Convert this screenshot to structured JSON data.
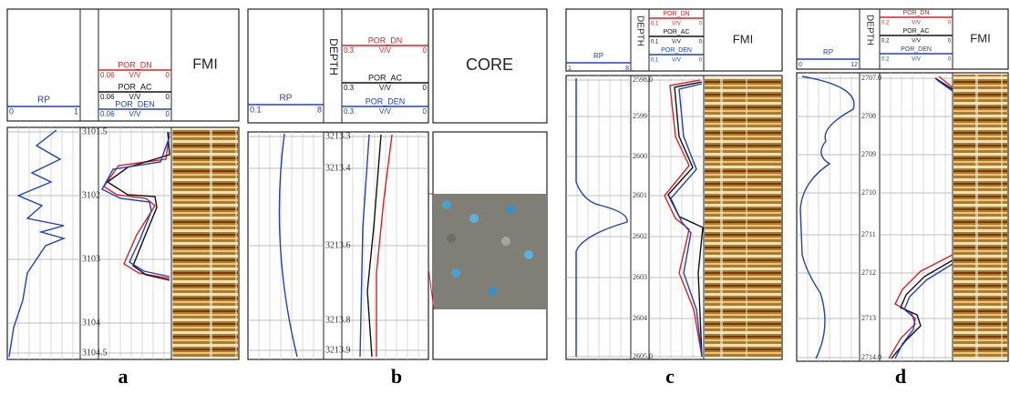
{
  "panels": [
    {
      "label": "a",
      "rp": {
        "name": "RP",
        "min": "0",
        "max": "1"
      },
      "por": [
        {
          "name": "POR_DN",
          "min": "0.06",
          "unit": "V/V",
          "max": "0"
        },
        {
          "name": "POR_AC",
          "min": "0.06",
          "unit": "V/V",
          "max": "0"
        },
        {
          "name": "POR_DEN",
          "min": "0.06",
          "unit": "V/V",
          "max": "0"
        }
      ],
      "fmi": "FMI",
      "depths": [
        "3101.5",
        "3102",
        "3103",
        "3104",
        "3104.5"
      ]
    },
    {
      "label": "b",
      "rp": {
        "name": "RP",
        "min": "0.1",
        "max": "8"
      },
      "depth_header": "DEPTH",
      "por": [
        {
          "name": "POR_DN",
          "min": "0.3",
          "unit": "V/V",
          "max": "0"
        },
        {
          "name": "POR_AC",
          "min": "0.3",
          "unit": "V/V",
          "max": "0"
        },
        {
          "name": "POR_DEN",
          "min": "0.3",
          "unit": "V/V",
          "max": "0"
        }
      ],
      "core": "CORE",
      "depths": [
        "3213.3",
        "3213.4",
        "3213.6",
        "3213.8",
        "3213.9"
      ]
    },
    {
      "label": "c",
      "rp": {
        "name": "RP",
        "min": "1",
        "max": "8"
      },
      "depth_header": "DEPTH",
      "por": [
        {
          "name": "POR_DN",
          "min": "0.1",
          "unit": "V/V",
          "max": "0"
        },
        {
          "name": "POR_AC",
          "min": "0.1",
          "unit": "V/V",
          "max": "0"
        },
        {
          "name": "POR_DEN",
          "min": "0.1",
          "unit": "V/V",
          "max": "0"
        }
      ],
      "fmi": "FMI",
      "depths": [
        "2598.0",
        "2599",
        "2600",
        "2601",
        "2602",
        "2603",
        "2604",
        "2605.0"
      ]
    },
    {
      "label": "d",
      "rp": {
        "name": "RP",
        "min": "0",
        "max": "12"
      },
      "depth_header": "DEPTH",
      "por": [
        {
          "name": "POR_DN",
          "min": "0.2",
          "unit": "V/V",
          "max": "0"
        },
        {
          "name": "POR_AC",
          "min": "0.2",
          "unit": "V/V",
          "max": "0"
        },
        {
          "name": "POR_DEN",
          "min": "0.2",
          "unit": "V/V",
          "max": "0"
        }
      ],
      "fmi": "FMI",
      "depths": [
        "2707.0",
        "2708",
        "2709",
        "2710",
        "2711",
        "2712",
        "2713",
        "2714.0"
      ]
    }
  ]
}
